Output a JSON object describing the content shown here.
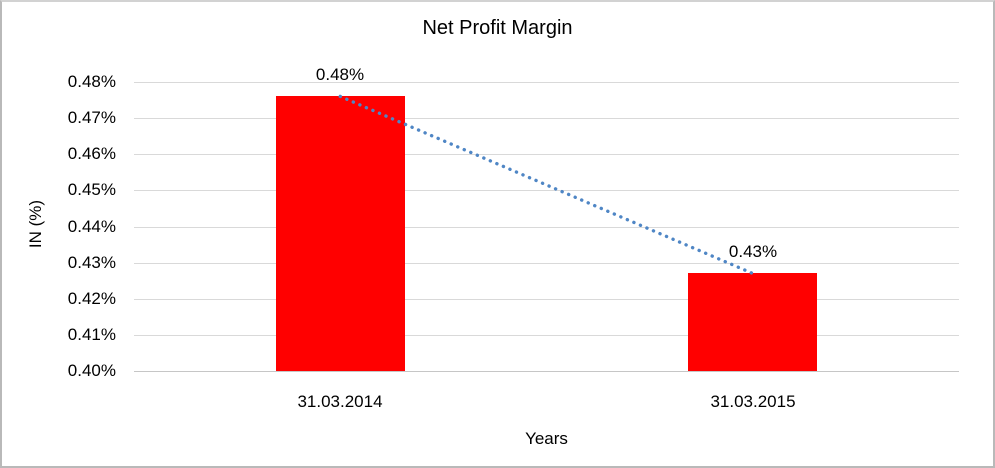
{
  "chart_data": {
    "type": "bar",
    "title": "Net Profit Margin",
    "xlabel": "Years",
    "ylabel": "IN (%)",
    "categories": [
      "31.03.2014",
      "31.03.2015"
    ],
    "series": [
      {
        "name": "Net Profit Margin",
        "values": [
          0.476,
          0.427
        ],
        "unit": "%"
      }
    ],
    "data_labels": [
      "0.48%",
      "0.43%"
    ],
    "ylim": [
      0.4,
      0.48
    ],
    "ytick_step": 0.01,
    "ytick_labels_top_to_bottom": [
      "0.48%",
      "0.47%",
      "0.46%",
      "0.45%",
      "0.44%",
      "0.43%",
      "0.42%",
      "0.41%",
      "0.40%"
    ],
    "grid": true,
    "legend": "none",
    "trendline": {
      "style": "dotted",
      "from_value": 0.476,
      "to_value": 0.427
    },
    "colors": {
      "bar": "#ff0000",
      "trendline": "#4f86c5",
      "gridline": "#d9d9d9",
      "baseline": "#c6c6c6",
      "text": "#000000"
    }
  }
}
